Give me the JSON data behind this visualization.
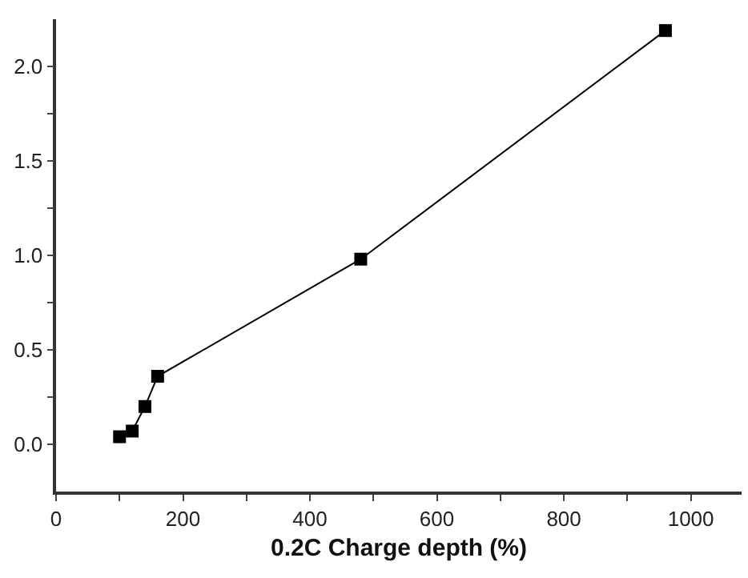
{
  "chart_data": {
    "type": "line",
    "xlabel": "0.2C Charge depth (%)",
    "x": [
      100,
      120,
      140,
      160,
      480,
      960
    ],
    "series": [
      {
        "color": "#000000",
        "values": [
          0.04,
          0.07,
          0.2,
          0.36,
          0.98,
          2.19
        ]
      }
    ],
    "xlim": [
      0,
      1080
    ],
    "ylim": [
      -0.25,
      2.25
    ],
    "xticks": [
      0,
      {
        "value": 100,
        "label": null
      },
      200,
      {
        "value": 300,
        "label": null
      },
      400,
      {
        "value": 500,
        "label": null
      },
      600,
      {
        "value": 700,
        "label": null
      },
      800,
      {
        "value": 900,
        "label": null
      },
      1000
    ],
    "yticks": [
      {
        "value": 0,
        "label": "0.0"
      },
      {
        "value": 0.25,
        "label": null
      },
      {
        "value": 0.5,
        "label": "0.5"
      },
      {
        "value": 0.75,
        "label": null
      },
      {
        "value": 1,
        "label": "1.0"
      },
      {
        "value": 1.25,
        "label": null
      },
      {
        "value": 1.5,
        "label": "1.5"
      },
      {
        "value": 1.75,
        "label": null
      },
      {
        "value": 2,
        "label": "2.0"
      }
    ],
    "marker": "square",
    "line_style": "solid",
    "grid": false,
    "legend": false
  }
}
